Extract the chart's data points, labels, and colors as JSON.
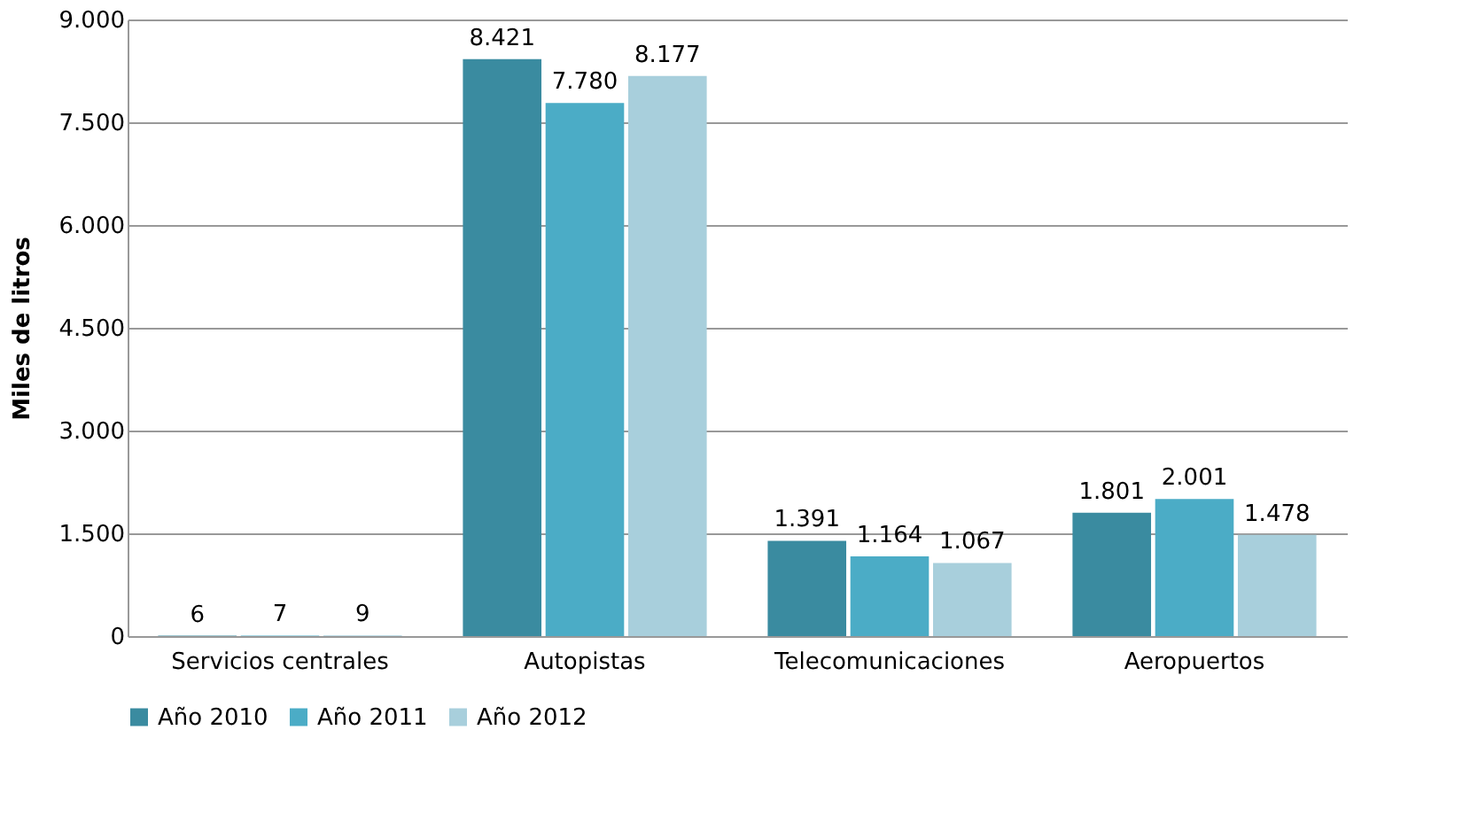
{
  "chart_data": {
    "type": "bar",
    "ylabel": "Miles de litros",
    "categories": [
      "Servicios centrales",
      "Autopistas",
      "Telecomunicaciones",
      "Aeropuertos"
    ],
    "series": [
      {
        "name": "Año 2010",
        "color": "#3a8ba0",
        "values": [
          6,
          8421,
          1391,
          1801
        ],
        "value_labels": [
          "6",
          "8.421",
          "1.391",
          "1.801"
        ]
      },
      {
        "name": "Año 2011",
        "color": "#4bacc6",
        "values": [
          7,
          7780,
          1164,
          2001
        ],
        "value_labels": [
          "7",
          "7.780",
          "1.164",
          "2.001"
        ]
      },
      {
        "name": "Año 2012",
        "color": "#a8cfdc",
        "values": [
          9,
          8177,
          1067,
          1478
        ],
        "value_labels": [
          "9",
          "8.177",
          "1.067",
          "1.478"
        ]
      }
    ],
    "ylim": [
      0,
      9000
    ],
    "yticks": [
      {
        "value": 0,
        "label": "0"
      },
      {
        "value": 1500,
        "label": "1.500"
      },
      {
        "value": 3000,
        "label": "3.000"
      },
      {
        "value": 4500,
        "label": "4.500"
      },
      {
        "value": 6000,
        "label": "6.000"
      },
      {
        "value": 7500,
        "label": "7.500"
      },
      {
        "value": 9000,
        "label": "9.000"
      }
    ],
    "grid": "y",
    "legend": "bottom"
  }
}
